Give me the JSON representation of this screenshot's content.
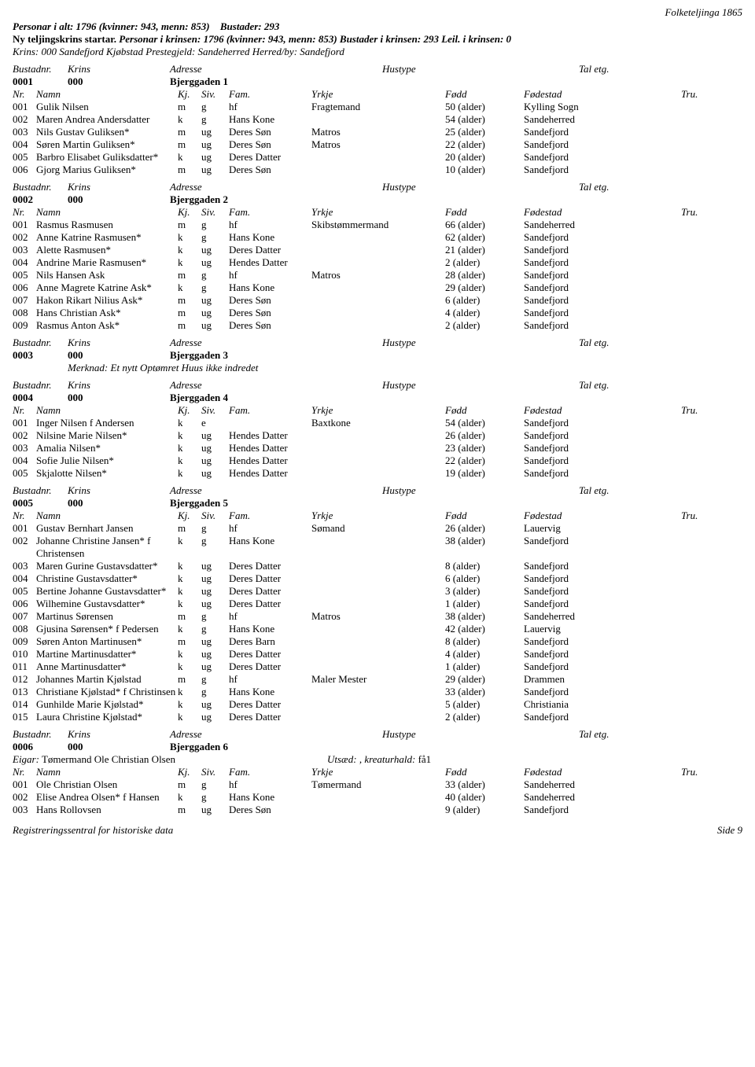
{
  "header_right": "Folketeljinga 1865",
  "summary": {
    "text": "Personar i alt: 1796 (kvinner: 943, menn: 853)",
    "bustader": "Bustader: 293"
  },
  "krins_start": {
    "lead": "Ny teljingskrins startar.",
    "persons": "Personar i krinsen: 1796 (kvinner: 943, menn: 853)",
    "bustader": "Bustader i krinsen: 293",
    "leil": "Leil. i krinsen: 0"
  },
  "krins_line": "Krins:  000 Sandefjord Kjøbstad  Prestegjeld:  Sandeherred  Herred/by:  Sandefjord",
  "labels": {
    "bustadnr": "Bustadnr.",
    "krins": "Krins",
    "adresse": "Adresse",
    "hustype": "Hustype",
    "taletg": "Tal etg.",
    "nr": "Nr.",
    "namn": "Namn",
    "kj": "Kj.",
    "siv": "Siv.",
    "fam": "Fam.",
    "yrkje": "Yrkje",
    "fodd": "Fødd",
    "fodestad": "Fødestad",
    "tru": "Tru.",
    "merknad": "Merknad:",
    "eigar": "Eigar:",
    "utsad": "Utsæd:",
    "kreatur": ", kreaturhald:"
  },
  "sections": [
    {
      "bustadnr": "0001",
      "krins": "000",
      "adresse": "Bjerggaden 1",
      "persons": [
        {
          "nr": "001",
          "namn": "Gulik Nilsen",
          "kj": "m",
          "siv": "g",
          "fam": "hf",
          "yrkje": "Fragtemand",
          "fodd": "50 (alder)",
          "sted": "Kylling Sogn"
        },
        {
          "nr": "002",
          "namn": "Maren Andrea Andersdatter",
          "kj": "k",
          "siv": "g",
          "fam": "Hans Kone",
          "yrkje": "",
          "fodd": "54 (alder)",
          "sted": "Sandeherred"
        },
        {
          "nr": "003",
          "namn": "Nils Gustav Guliksen*",
          "kj": "m",
          "siv": "ug",
          "fam": "Deres Søn",
          "yrkje": "Matros",
          "fodd": "25 (alder)",
          "sted": "Sandefjord"
        },
        {
          "nr": "004",
          "namn": "Søren Martin Guliksen*",
          "kj": "m",
          "siv": "ug",
          "fam": "Deres Søn",
          "yrkje": "Matros",
          "fodd": "22 (alder)",
          "sted": "Sandefjord"
        },
        {
          "nr": "005",
          "namn": "Barbro Elisabet Guliksdatter*",
          "kj": "k",
          "siv": "ug",
          "fam": "Deres Datter",
          "yrkje": "",
          "fodd": "20 (alder)",
          "sted": "Sandefjord"
        },
        {
          "nr": "006",
          "namn": "Gjorg Marius Guliksen*",
          "kj": "m",
          "siv": "ug",
          "fam": "Deres Søn",
          "yrkje": "",
          "fodd": "10 (alder)",
          "sted": "Sandefjord"
        }
      ]
    },
    {
      "bustadnr": "0002",
      "krins": "000",
      "adresse": "Bjerggaden 2",
      "persons": [
        {
          "nr": "001",
          "namn": "Rasmus Rasmusen",
          "kj": "m",
          "siv": "g",
          "fam": "hf",
          "yrkje": "Skibstømmermand",
          "fodd": "66 (alder)",
          "sted": "Sandeherred"
        },
        {
          "nr": "002",
          "namn": "Anne Katrine Rasmusen*",
          "kj": "k",
          "siv": "g",
          "fam": "Hans Kone",
          "yrkje": "",
          "fodd": "62 (alder)",
          "sted": "Sandefjord"
        },
        {
          "nr": "003",
          "namn": "Alette Rasmusen*",
          "kj": "k",
          "siv": "ug",
          "fam": "Deres Datter",
          "yrkje": "",
          "fodd": "21 (alder)",
          "sted": "Sandefjord"
        },
        {
          "nr": "004",
          "namn": "Andrine Marie Rasmusen*",
          "kj": "k",
          "siv": "ug",
          "fam": "Hendes Datter",
          "yrkje": "",
          "fodd": "2 (alder)",
          "sted": "Sandefjord"
        },
        {
          "nr": "005",
          "namn": "Nils Hansen Ask",
          "kj": "m",
          "siv": "g",
          "fam": "hf",
          "yrkje": "Matros",
          "fodd": "28 (alder)",
          "sted": "Sandefjord"
        },
        {
          "nr": "006",
          "namn": "Anne Magrete Katrine Ask*",
          "kj": "k",
          "siv": "g",
          "fam": "Hans Kone",
          "yrkje": "",
          "fodd": "29 (alder)",
          "sted": "Sandefjord"
        },
        {
          "nr": "007",
          "namn": "Hakon Rikart Nilius Ask*",
          "kj": "m",
          "siv": "ug",
          "fam": "Deres Søn",
          "yrkje": "",
          "fodd": "6 (alder)",
          "sted": "Sandefjord"
        },
        {
          "nr": "008",
          "namn": "Hans Christian Ask*",
          "kj": "m",
          "siv": "ug",
          "fam": "Deres Søn",
          "yrkje": "",
          "fodd": "4 (alder)",
          "sted": "Sandefjord"
        },
        {
          "nr": "009",
          "namn": "Rasmus Anton Ask*",
          "kj": "m",
          "siv": "ug",
          "fam": "Deres Søn",
          "yrkje": "",
          "fodd": "2 (alder)",
          "sted": "Sandefjord"
        }
      ]
    },
    {
      "bustadnr": "0003",
      "krins": "000",
      "adresse": "Bjerggaden 3",
      "merknad": "Et nytt Optømret Huus ikke indredet",
      "persons": []
    },
    {
      "bustadnr": "0004",
      "krins": "000",
      "adresse": "Bjerggaden 4",
      "persons": [
        {
          "nr": "001",
          "namn": "Inger Nilsen f Andersen",
          "kj": "k",
          "siv": "e",
          "fam": "",
          "yrkje": "Baxtkone",
          "fodd": "54 (alder)",
          "sted": "Sandefjord"
        },
        {
          "nr": "002",
          "namn": "Nilsine Marie Nilsen*",
          "kj": "k",
          "siv": "ug",
          "fam": "Hendes Datter",
          "yrkje": "",
          "fodd": "26 (alder)",
          "sted": "Sandefjord"
        },
        {
          "nr": "003",
          "namn": "Amalia Nilsen*",
          "kj": "k",
          "siv": "ug",
          "fam": "Hendes Datter",
          "yrkje": "",
          "fodd": "23 (alder)",
          "sted": "Sandefjord"
        },
        {
          "nr": "004",
          "namn": "Sofie Julie Nilsen*",
          "kj": "k",
          "siv": "ug",
          "fam": "Hendes Datter",
          "yrkje": "",
          "fodd": "22 (alder)",
          "sted": "Sandefjord"
        },
        {
          "nr": "005",
          "namn": "Skjalotte Nilsen*",
          "kj": "k",
          "siv": "ug",
          "fam": "Hendes Datter",
          "yrkje": "",
          "fodd": "19 (alder)",
          "sted": "Sandefjord"
        }
      ]
    },
    {
      "bustadnr": "0005",
      "krins": "000",
      "adresse": "Bjerggaden 5",
      "persons": [
        {
          "nr": "001",
          "namn": "Gustav Bernhart Jansen",
          "kj": "m",
          "siv": "g",
          "fam": "hf",
          "yrkje": "Sømand",
          "fodd": "26 (alder)",
          "sted": "Lauervig"
        },
        {
          "nr": "002",
          "namn": "Johanne Christine Jansen* f Christensen",
          "kj": "k",
          "siv": "g",
          "fam": "Hans Kone",
          "yrkje": "",
          "fodd": "38 (alder)",
          "sted": "Sandefjord"
        },
        {
          "nr": "003",
          "namn": "Maren Gurine Gustavsdatter*",
          "kj": "k",
          "siv": "ug",
          "fam": "Deres Datter",
          "yrkje": "",
          "fodd": "8 (alder)",
          "sted": "Sandefjord"
        },
        {
          "nr": "004",
          "namn": "Christine Gustavsdatter*",
          "kj": "k",
          "siv": "ug",
          "fam": "Deres Datter",
          "yrkje": "",
          "fodd": "6 (alder)",
          "sted": "Sandefjord"
        },
        {
          "nr": "005",
          "namn": "Bertine Johanne Gustavsdatter*",
          "kj": "k",
          "siv": "ug",
          "fam": "Deres Datter",
          "yrkje": "",
          "fodd": "3 (alder)",
          "sted": "Sandefjord"
        },
        {
          "nr": "006",
          "namn": "Wilhemine Gustavsdatter*",
          "kj": "k",
          "siv": "ug",
          "fam": "Deres Datter",
          "yrkje": "",
          "fodd": "1 (alder)",
          "sted": "Sandefjord"
        },
        {
          "nr": "007",
          "namn": "Martinus Sørensen",
          "kj": "m",
          "siv": "g",
          "fam": "hf",
          "yrkje": "Matros",
          "fodd": "38 (alder)",
          "sted": "Sandeherred"
        },
        {
          "nr": "008",
          "namn": "Gjusina Sørensen* f Pedersen",
          "kj": "k",
          "siv": "g",
          "fam": "Hans Kone",
          "yrkje": "",
          "fodd": "42 (alder)",
          "sted": "Lauervig"
        },
        {
          "nr": "009",
          "namn": "Søren Anton Martinusen*",
          "kj": "m",
          "siv": "ug",
          "fam": "Deres Barn",
          "yrkje": "",
          "fodd": "8 (alder)",
          "sted": "Sandefjord"
        },
        {
          "nr": "010",
          "namn": "Martine Martinusdatter*",
          "kj": "k",
          "siv": "ug",
          "fam": "Deres Datter",
          "yrkje": "",
          "fodd": "4 (alder)",
          "sted": "Sandefjord"
        },
        {
          "nr": "011",
          "namn": "Anne Martinusdatter*",
          "kj": "k",
          "siv": "ug",
          "fam": "Deres Datter",
          "yrkje": "",
          "fodd": "1 (alder)",
          "sted": "Sandefjord"
        },
        {
          "nr": "012",
          "namn": "Johannes Martin Kjølstad",
          "kj": "m",
          "siv": "g",
          "fam": "hf",
          "yrkje": "Maler Mester",
          "fodd": "29 (alder)",
          "sted": "Drammen"
        },
        {
          "nr": "013",
          "namn": "Christiane Kjølstad* f Christinsen",
          "kj": "k",
          "siv": "g",
          "fam": "Hans Kone",
          "yrkje": "",
          "fodd": "33 (alder)",
          "sted": "Sandefjord"
        },
        {
          "nr": "014",
          "namn": "Gunhilde Marie Kjølstad*",
          "kj": "k",
          "siv": "ug",
          "fam": "Deres Datter",
          "yrkje": "",
          "fodd": "5 (alder)",
          "sted": "Christiania"
        },
        {
          "nr": "015",
          "namn": "Laura Christine Kjølstad*",
          "kj": "k",
          "siv": "ug",
          "fam": "Deres Datter",
          "yrkje": "",
          "fodd": "2 (alder)",
          "sted": "Sandefjord"
        }
      ]
    },
    {
      "bustadnr": "0006",
      "krins": "000",
      "adresse": "Bjerggaden 6",
      "eigar": "Tømermand Ole Christian Olsen",
      "utsad": "",
      "kreatur": "få1",
      "persons": [
        {
          "nr": "001",
          "namn": "Ole Christian Olsen",
          "kj": "m",
          "siv": "g",
          "fam": "hf",
          "yrkje": "Tømermand",
          "fodd": "33 (alder)",
          "sted": "Sandeherred"
        },
        {
          "nr": "002",
          "namn": "Elise Andrea Olsen* f Hansen",
          "kj": "k",
          "siv": "g",
          "fam": "Hans Kone",
          "yrkje": "",
          "fodd": "40 (alder)",
          "sted": "Sandeherred"
        },
        {
          "nr": "003",
          "namn": "Hans Rollovsen",
          "kj": "m",
          "siv": "ug",
          "fam": "Deres Søn",
          "yrkje": "",
          "fodd": "9 (alder)",
          "sted": "Sandefjord"
        }
      ]
    }
  ],
  "footer": {
    "left": "Registreringssentral for historiske data",
    "right": "Side 9"
  }
}
